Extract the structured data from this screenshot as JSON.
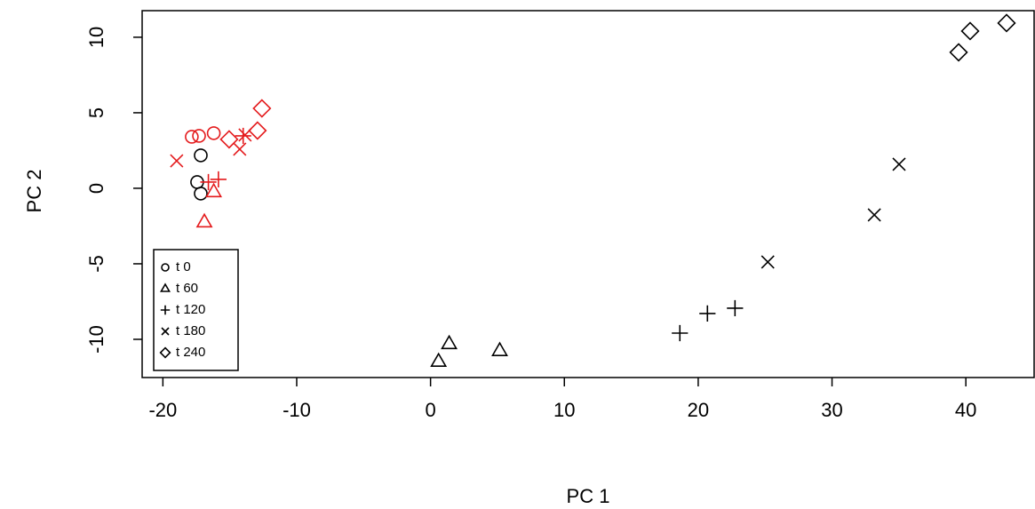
{
  "chart_data": {
    "type": "scatter",
    "x_label": "PC 1",
    "y_label": "PC 2",
    "xlim": [
      -21.55,
      45.1
    ],
    "ylim": [
      -12.53,
      11.76
    ],
    "xticks": [
      -20,
      -10,
      0,
      10,
      20,
      30,
      40
    ],
    "yticks": [
      -10,
      -5,
      0,
      5,
      10
    ],
    "legend_position": "bottom-left",
    "series": [
      {
        "name": "t 0",
        "marker": "circle",
        "color": "#000000",
        "x": [
          -17.84,
          -17.3,
          -16.2,
          -17.17,
          -17.44,
          -17.17
        ],
        "y": [
          3.41,
          3.47,
          3.65,
          2.18,
          0.41,
          -0.35
        ],
        "colors": [
          "#e41a1c",
          "#e41a1c",
          "#e41a1c",
          "#000000",
          "#000000",
          "#000000"
        ]
      },
      {
        "name": "t 60",
        "marker": "triangle",
        "color": "#000000",
        "x": [
          -16.9,
          -16.2,
          0.6,
          1.39,
          5.17
        ],
        "y": [
          -2.24,
          -0.24,
          -11.47,
          -10.3,
          -10.76
        ],
        "colors": [
          "#e41a1c",
          "#e41a1c",
          "#000000",
          "#000000",
          "#000000"
        ]
      },
      {
        "name": "t 120",
        "marker": "plus",
        "color": "#000000",
        "x": [
          -16.6,
          -15.85,
          -14.0,
          18.63,
          20.69,
          22.75
        ],
        "y": [
          0.41,
          0.59,
          3.47,
          -9.59,
          -8.29,
          -7.94
        ],
        "colors": [
          "#e41a1c",
          "#e41a1c",
          "#e41a1c",
          "#000000",
          "#000000",
          "#000000"
        ]
      },
      {
        "name": "t 180",
        "marker": "cross",
        "color": "#000000",
        "x": [
          -18.97,
          -14.26,
          -13.86,
          25.2,
          33.16,
          35.01
        ],
        "y": [
          1.82,
          2.59,
          3.53,
          -4.88,
          -1.76,
          1.59
        ],
        "colors": [
          "#e41a1c",
          "#e41a1c",
          "#e41a1c",
          "#000000",
          "#000000",
          "#000000"
        ]
      },
      {
        "name": "t 240",
        "marker": "diamond",
        "color": "#000000",
        "x": [
          -15.05,
          -12.93,
          -12.6,
          39.46,
          40.32,
          43.04
        ],
        "y": [
          3.24,
          3.82,
          5.29,
          9.0,
          10.41,
          10.94
        ],
        "colors": [
          "#e41a1c",
          "#e41a1c",
          "#e41a1c",
          "#000000",
          "#000000",
          "#000000"
        ]
      }
    ]
  }
}
